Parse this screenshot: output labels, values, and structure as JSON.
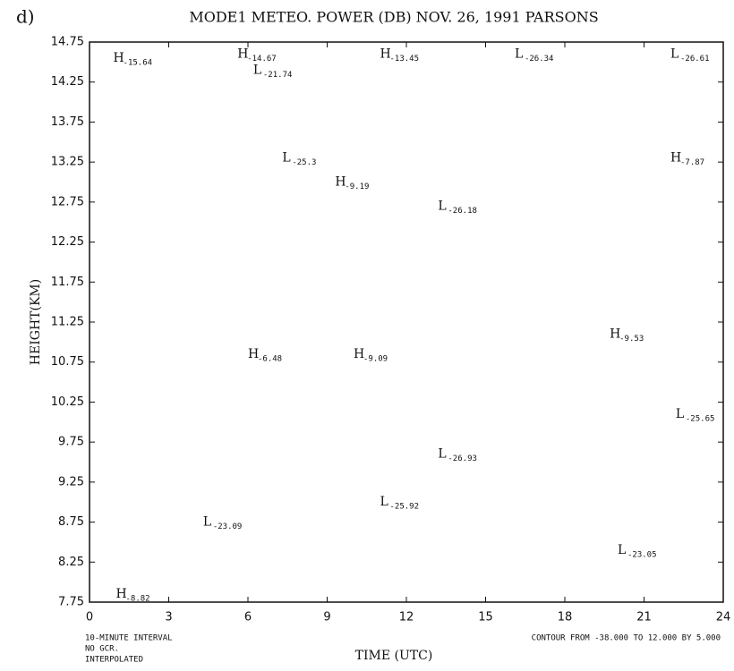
{
  "panel_label": "d)",
  "chart_data": {
    "type": "contour",
    "title": "MODE1 METEO. POWER (DB) NOV. 26, 1991  PARSONS",
    "x_label": "TIME (UTC)",
    "y_label": "HEIGHT(KM)",
    "xlim": [
      0,
      24
    ],
    "xticks": [
      0,
      3,
      6,
      9,
      12,
      15,
      18,
      21,
      24
    ],
    "ylim": [
      7.75,
      14.75
    ],
    "yticks": [
      7.75,
      8.25,
      8.75,
      9.25,
      9.75,
      10.25,
      10.75,
      11.25,
      11.75,
      12.25,
      12.75,
      13.25,
      13.75,
      14.25,
      14.75
    ],
    "extrema": [
      {
        "text": "H",
        "value": -15.64,
        "x": 0.9,
        "y": 14.55
      },
      {
        "text": "H",
        "value": -14.67,
        "x": 5.6,
        "y": 14.6
      },
      {
        "text": "L",
        "value": -21.74,
        "x": 6.2,
        "y": 14.4
      },
      {
        "text": "H",
        "value": -13.45,
        "x": 11.0,
        "y": 14.6
      },
      {
        "text": "L",
        "value": -26.34,
        "x": 16.1,
        "y": 14.6
      },
      {
        "text": "L",
        "value": -26.61,
        "x": 22.0,
        "y": 14.6
      },
      {
        "text": "L",
        "value": -25.3,
        "x": 7.3,
        "y": 13.3
      },
      {
        "text": "H",
        "value": -9.19,
        "x": 9.3,
        "y": 13.0
      },
      {
        "text": "L",
        "value": -26.18,
        "x": 13.2,
        "y": 12.7
      },
      {
        "text": "H",
        "value": -7.87,
        "x": 22.0,
        "y": 13.3
      },
      {
        "text": "H",
        "value": -6.48,
        "x": 6.0,
        "y": 10.85
      },
      {
        "text": "H",
        "value": -9.09,
        "x": 10.0,
        "y": 10.85
      },
      {
        "text": "H",
        "value": -9.53,
        "x": 19.7,
        "y": 11.1
      },
      {
        "text": "L",
        "value": -25.65,
        "x": 22.2,
        "y": 10.1
      },
      {
        "text": "L",
        "value": -26.93,
        "x": 13.2,
        "y": 9.6
      },
      {
        "text": "L",
        "value": -25.92,
        "x": 11.0,
        "y": 9.0
      },
      {
        "text": "L",
        "value": -23.09,
        "x": 4.3,
        "y": 8.75
      },
      {
        "text": "L",
        "value": -23.05,
        "x": 20.0,
        "y": 8.4
      },
      {
        "text": "H",
        "value": -8.82,
        "x": 1.0,
        "y": 7.85
      }
    ],
    "notes": [
      "10-MINUTE INTERVAL",
      "NO GCR.",
      "INTERPOLATED"
    ],
    "contour_note": "CONTOUR FROM -38.000 TO 12.000 BY 5.000"
  }
}
